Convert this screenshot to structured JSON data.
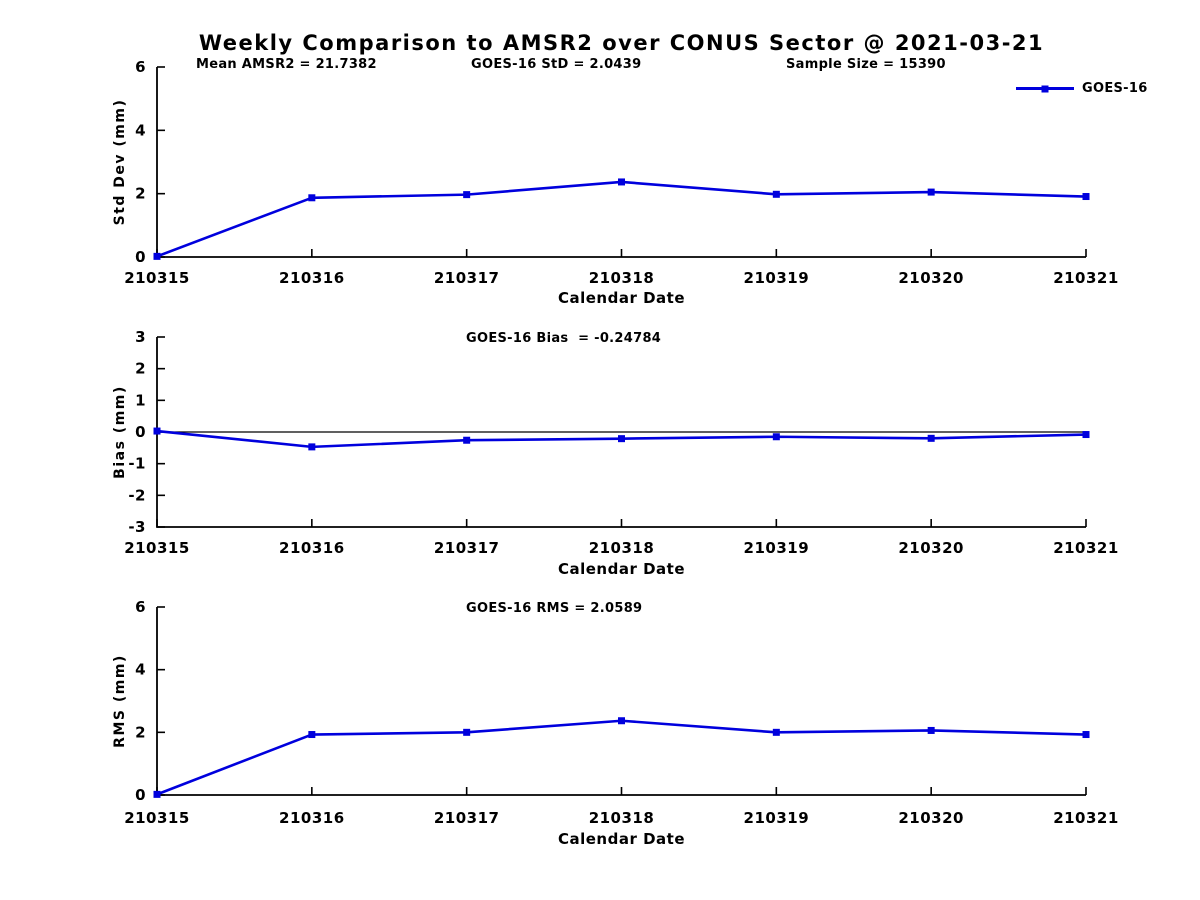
{
  "title": "Weekly Comparison to AMSR2 over CONUS Sector @ 2021-03-21",
  "legend": {
    "label": "GOES-16",
    "position": "top-right"
  },
  "colors": {
    "series": "#0000dd",
    "axis": "#000000",
    "text": "#000000",
    "background": "#ffffff"
  },
  "chart_data": [
    {
      "name": "std-dev",
      "type": "line",
      "annotations": [
        "Mean AMSR2 = 21.7382",
        "GOES-16 StD = 2.0439",
        "Sample Size = 15390"
      ],
      "categories": [
        "210315",
        "210316",
        "210317",
        "210318",
        "210319",
        "210320",
        "210321"
      ],
      "series": [
        {
          "name": "GOES-16",
          "values": [
            0.02,
            1.87,
            1.97,
            2.37,
            1.98,
            2.05,
            1.91
          ]
        }
      ],
      "xlabel": "Calendar Date",
      "ylabel": "Std Dev (mm)",
      "ylim": [
        0,
        6
      ],
      "yticks": [
        0,
        2,
        4,
        6
      ],
      "grid": false,
      "zero_line": false,
      "legend": "GOES-16"
    },
    {
      "name": "bias",
      "type": "line",
      "annotations": [
        "GOES-16 Bias  = -0.24784"
      ],
      "categories": [
        "210315",
        "210316",
        "210317",
        "210318",
        "210319",
        "210320",
        "210321"
      ],
      "series": [
        {
          "name": "GOES-16",
          "values": [
            0.03,
            -0.47,
            -0.26,
            -0.21,
            -0.15,
            -0.2,
            -0.08
          ]
        }
      ],
      "xlabel": "Calendar Date",
      "ylabel": "Bias (mm)",
      "ylim": [
        -3,
        3
      ],
      "yticks": [
        -3,
        -2,
        -1,
        0,
        1,
        2,
        3
      ],
      "grid": false,
      "zero_line": true
    },
    {
      "name": "rms",
      "type": "line",
      "annotations": [
        "GOES-16 RMS = 2.0589"
      ],
      "categories": [
        "210315",
        "210316",
        "210317",
        "210318",
        "210319",
        "210320",
        "210321"
      ],
      "series": [
        {
          "name": "GOES-16",
          "values": [
            0.02,
            1.93,
            2.0,
            2.37,
            2.0,
            2.06,
            1.93
          ]
        }
      ],
      "xlabel": "Calendar Date",
      "ylabel": "RMS (mm)",
      "ylim": [
        0,
        6
      ],
      "yticks": [
        0,
        2,
        4,
        6
      ],
      "grid": false,
      "zero_line": false
    }
  ]
}
